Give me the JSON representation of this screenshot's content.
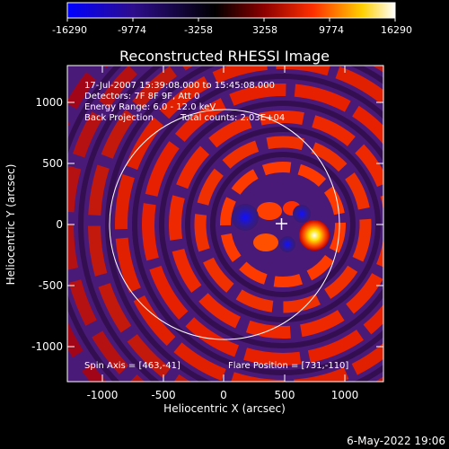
{
  "colorbar": {
    "ticks": [
      "-16290",
      "-9774",
      "-3258",
      "3258",
      "9774",
      "16290"
    ],
    "colors": [
      "#0000ff",
      "#2d0d8c",
      "#000000",
      "#8c0000",
      "#ff3000",
      "#ffd000",
      "#ffffff"
    ]
  },
  "plot": {
    "title": "Reconstructed RHESSI Image",
    "x_axis_label": "Heliocentric X (arcsec)",
    "y_axis_label": "Heliocentric Y (arcsec)",
    "x_ticks": [
      "-1000",
      "-500",
      "0",
      "500",
      "1000"
    ],
    "y_ticks": [
      "1000",
      "500",
      "0",
      "-500",
      "-1000"
    ]
  },
  "annotations": {
    "time_range": "17-Jul-2007 15:39:08.000 to 15:45:08.000",
    "detectors": "Detectors: 7F 8F 9F, Att 0",
    "energy_range": "Energy Range: 6.0 - 12.0 keV",
    "method": "Back Projection",
    "total_counts": "Total counts: 2.03E+04",
    "spin_axis": "Spin Axis = [463,-41]",
    "flare_position": "Flare Position = [731,-110]"
  },
  "footer": {
    "date": "6-May-2022 19:06"
  }
}
